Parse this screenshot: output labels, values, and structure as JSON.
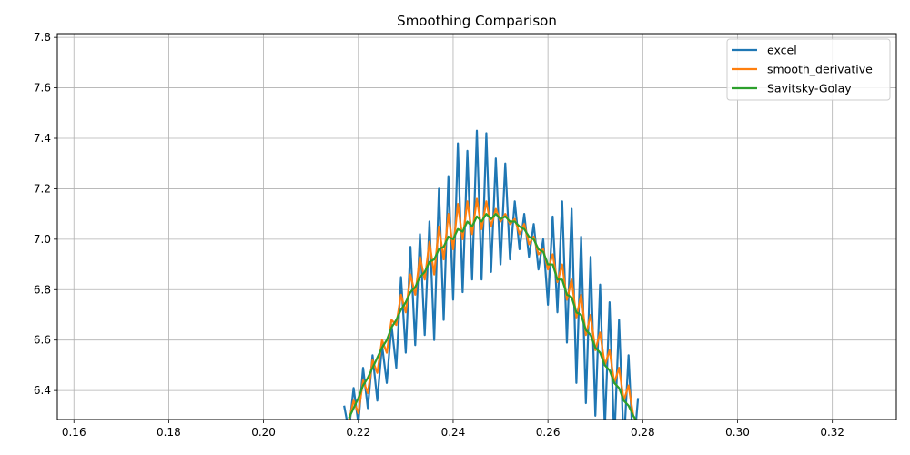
{
  "chart_data": {
    "type": "line",
    "title": "Smoothing Comparison",
    "xlabel": "",
    "ylabel": "",
    "xlim": [
      0.1565,
      0.3335
    ],
    "ylim": [
      6.285,
      7.815
    ],
    "xticks": [
      0.16,
      0.18,
      0.2,
      0.22,
      0.24,
      0.26,
      0.28,
      0.3,
      0.32
    ],
    "xtick_labels": [
      "0.16",
      "0.18",
      "0.20",
      "0.22",
      "0.24",
      "0.26",
      "0.28",
      "0.30",
      "0.32"
    ],
    "yticks": [
      6.4,
      6.6,
      6.8,
      7.0,
      7.2,
      7.4,
      7.6,
      7.8
    ],
    "ytick_labels": [
      "6.4",
      "6.6",
      "6.8",
      "7.0",
      "7.2",
      "7.4",
      "7.6",
      "7.8"
    ],
    "grid": true,
    "legend_position": "top-right",
    "series": [
      {
        "name": "excel",
        "color": "#1f77b4",
        "x": [
          0.217,
          0.218,
          0.219,
          0.22,
          0.221,
          0.222,
          0.223,
          0.224,
          0.225,
          0.226,
          0.227,
          0.228,
          0.229,
          0.23,
          0.231,
          0.232,
          0.233,
          0.234,
          0.235,
          0.236,
          0.237,
          0.238,
          0.239,
          0.24,
          0.241,
          0.242,
          0.243,
          0.244,
          0.245,
          0.246,
          0.247,
          0.248,
          0.249,
          0.25,
          0.251,
          0.252,
          0.253,
          0.254,
          0.255,
          0.256,
          0.257,
          0.258,
          0.259,
          0.26,
          0.261,
          0.262,
          0.263,
          0.264,
          0.265,
          0.266,
          0.267,
          0.268,
          0.269,
          0.27,
          0.271,
          0.272,
          0.273,
          0.274,
          0.275,
          0.276,
          0.277,
          0.278,
          0.279
        ],
        "y": [
          6.34,
          6.24,
          6.41,
          6.27,
          6.49,
          6.33,
          6.54,
          6.36,
          6.58,
          6.43,
          6.66,
          6.49,
          6.85,
          6.55,
          6.97,
          6.58,
          7.02,
          6.62,
          7.07,
          6.6,
          7.2,
          6.68,
          7.25,
          6.76,
          7.38,
          6.79,
          7.35,
          6.84,
          7.43,
          6.84,
          7.42,
          6.87,
          7.32,
          6.9,
          7.3,
          6.92,
          7.15,
          6.96,
          7.1,
          6.93,
          7.06,
          6.88,
          7.0,
          6.74,
          7.09,
          6.71,
          7.15,
          6.59,
          7.12,
          6.43,
          7.01,
          6.35,
          6.93,
          6.3,
          6.82,
          6.25,
          6.75,
          6.2,
          6.68,
          6.18,
          6.54,
          6.15,
          6.37
        ]
      },
      {
        "name": "smooth_derivative",
        "color": "#ff7f0e",
        "x": [
          0.218,
          0.219,
          0.22,
          0.221,
          0.222,
          0.223,
          0.224,
          0.225,
          0.226,
          0.227,
          0.228,
          0.229,
          0.23,
          0.231,
          0.232,
          0.233,
          0.234,
          0.235,
          0.236,
          0.237,
          0.238,
          0.239,
          0.24,
          0.241,
          0.242,
          0.243,
          0.244,
          0.245,
          0.246,
          0.247,
          0.248,
          0.249,
          0.25,
          0.251,
          0.252,
          0.253,
          0.254,
          0.255,
          0.256,
          0.257,
          0.258,
          0.259,
          0.26,
          0.261,
          0.262,
          0.263,
          0.264,
          0.265,
          0.266,
          0.267,
          0.268,
          0.269,
          0.27,
          0.271,
          0.272,
          0.273,
          0.274,
          0.275,
          0.276,
          0.277,
          0.278,
          0.279
        ],
        "y": [
          6.28,
          6.36,
          6.31,
          6.44,
          6.39,
          6.52,
          6.47,
          6.6,
          6.55,
          6.68,
          6.66,
          6.78,
          6.71,
          6.86,
          6.78,
          6.93,
          6.84,
          6.99,
          6.86,
          7.05,
          6.92,
          7.1,
          6.96,
          7.14,
          7.0,
          7.15,
          7.02,
          7.16,
          7.04,
          7.15,
          7.05,
          7.12,
          7.07,
          7.1,
          7.06,
          7.08,
          7.02,
          7.06,
          6.98,
          7.01,
          6.94,
          6.96,
          6.88,
          6.94,
          6.83,
          6.9,
          6.76,
          6.84,
          6.69,
          6.78,
          6.62,
          6.7,
          6.56,
          6.63,
          6.5,
          6.56,
          6.43,
          6.49,
          6.36,
          6.42,
          6.3,
          6.27
        ]
      },
      {
        "name": "Savitsky-Golay",
        "color": "#2ca02c",
        "x": [
          0.218,
          0.219,
          0.22,
          0.221,
          0.222,
          0.223,
          0.224,
          0.225,
          0.226,
          0.227,
          0.228,
          0.229,
          0.23,
          0.231,
          0.232,
          0.233,
          0.234,
          0.235,
          0.236,
          0.237,
          0.238,
          0.239,
          0.24,
          0.241,
          0.242,
          0.243,
          0.244,
          0.245,
          0.246,
          0.247,
          0.248,
          0.249,
          0.25,
          0.251,
          0.252,
          0.253,
          0.254,
          0.255,
          0.256,
          0.257,
          0.258,
          0.259,
          0.26,
          0.261,
          0.262,
          0.263,
          0.264,
          0.265,
          0.266,
          0.267,
          0.268,
          0.269,
          0.27,
          0.271,
          0.272,
          0.273,
          0.274,
          0.275,
          0.276,
          0.277,
          0.278,
          0.279
        ],
        "y": [
          6.29,
          6.33,
          6.37,
          6.42,
          6.45,
          6.49,
          6.53,
          6.57,
          6.6,
          6.65,
          6.68,
          6.72,
          6.75,
          6.79,
          6.81,
          6.85,
          6.87,
          6.91,
          6.92,
          6.96,
          6.97,
          7.01,
          7.0,
          7.04,
          7.03,
          7.07,
          7.05,
          7.09,
          7.07,
          7.1,
          7.08,
          7.1,
          7.08,
          7.09,
          7.07,
          7.07,
          7.05,
          7.04,
          7.01,
          7.0,
          6.96,
          6.95,
          6.9,
          6.9,
          6.84,
          6.84,
          6.78,
          6.77,
          6.71,
          6.7,
          6.64,
          6.62,
          6.57,
          6.55,
          6.5,
          6.48,
          6.43,
          6.41,
          6.36,
          6.34,
          6.3,
          6.27
        ]
      }
    ]
  }
}
